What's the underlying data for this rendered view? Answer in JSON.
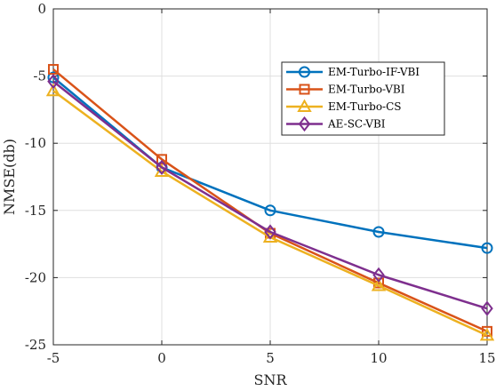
{
  "chart_data": {
    "type": "line",
    "xlabel": "SNR",
    "ylabel": "NMSE(db)",
    "x": [
      -5,
      0,
      5,
      10,
      15
    ],
    "xlim": [
      -5,
      15
    ],
    "ylim": [
      -25,
      0
    ],
    "xticks": [
      "-5",
      "0",
      "5",
      "10",
      "15"
    ],
    "yticks": [
      "0",
      "-5",
      "-10",
      "-15",
      "-20",
      "-25"
    ],
    "grid": true,
    "legend_position": "top-right",
    "series": [
      {
        "name": "EM-Turbo-IF-VBI",
        "color": "#0072BD",
        "marker": "circle",
        "values": [
          -5.1,
          -11.8,
          -15.0,
          -16.6,
          -17.8
        ]
      },
      {
        "name": "EM-Turbo-VBI",
        "color": "#D95319",
        "marker": "square",
        "values": [
          -4.5,
          -11.2,
          -16.7,
          -20.4,
          -24.0
        ]
      },
      {
        "name": "EM-Turbo-CS",
        "color": "#EDB120",
        "marker": "triangle",
        "values": [
          -6.1,
          -12.1,
          -17.0,
          -20.6,
          -24.3
        ]
      },
      {
        "name": "AE-SC-VBI",
        "color": "#7E2F8E",
        "marker": "diamond",
        "values": [
          -5.4,
          -11.8,
          -16.6,
          -19.8,
          -22.3
        ]
      }
    ]
  }
}
